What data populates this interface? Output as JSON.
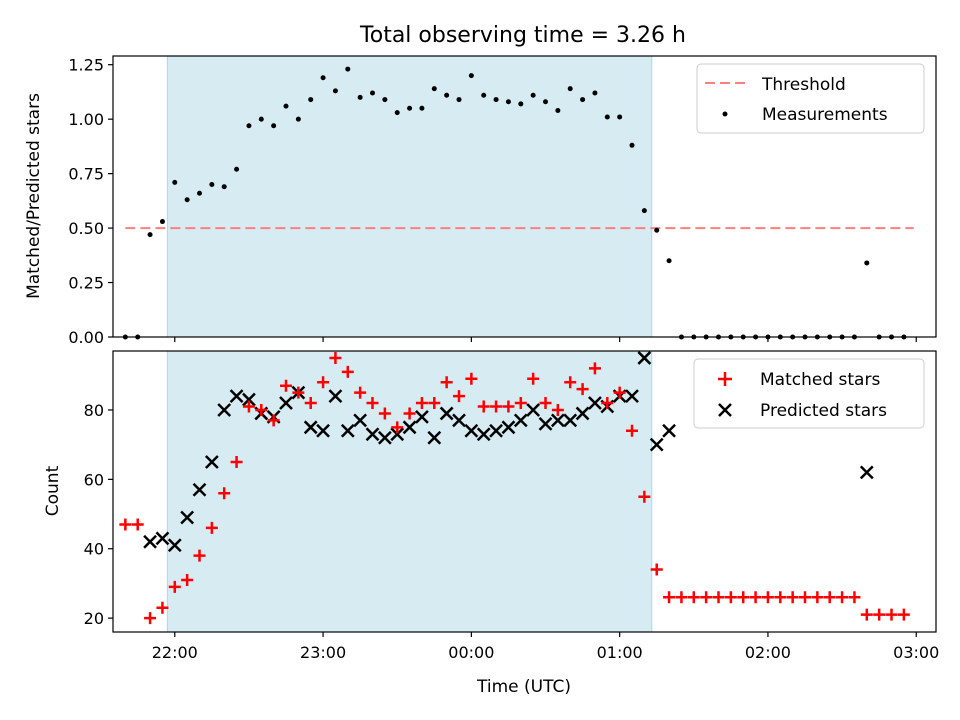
{
  "title": "Total observing time = 3.26 h",
  "chart_data": [
    {
      "type": "scatter",
      "ylabel": "Matched/Predicted stars",
      "xlim": [
        "21:35",
        "03:08"
      ],
      "ylim": [
        0,
        1.29
      ],
      "yticks": [
        "0.00",
        "0.25",
        "0.50",
        "0.75",
        "1.00",
        "1.25"
      ],
      "grid": false,
      "legend": "top-right",
      "observing_window": [
        "21:57",
        "01:13"
      ],
      "threshold": {
        "name": "Threshold",
        "value": 0.5,
        "x": [
          "21:40",
          "02:59"
        ],
        "color": "#ff7f7f"
      },
      "series": [
        {
          "name": "Measurements",
          "color": "#000000",
          "x": [
            "21:40",
            "21:45",
            "21:50",
            "21:55",
            "22:00",
            "22:05",
            "22:10",
            "22:15",
            "22:20",
            "22:25",
            "22:30",
            "22:35",
            "22:40",
            "22:45",
            "22:50",
            "22:55",
            "23:00",
            "23:05",
            "23:10",
            "23:15",
            "23:20",
            "23:25",
            "23:30",
            "23:35",
            "23:40",
            "23:45",
            "23:50",
            "23:55",
            "00:00",
            "00:05",
            "00:10",
            "00:15",
            "00:20",
            "00:25",
            "00:30",
            "00:35",
            "00:40",
            "00:45",
            "00:50",
            "00:55",
            "01:00",
            "01:05",
            "01:10",
            "01:15",
            "01:20",
            "01:25",
            "01:30",
            "01:35",
            "01:40",
            "01:45",
            "01:50",
            "01:55",
            "02:00",
            "02:05",
            "02:10",
            "02:15",
            "02:20",
            "02:25",
            "02:30",
            "02:35",
            "02:40",
            "02:45",
            "02:50",
            "02:55"
          ],
          "y": [
            0.0,
            0.0,
            0.47,
            0.53,
            0.71,
            0.63,
            0.66,
            0.7,
            0.69,
            0.77,
            0.97,
            1.0,
            0.97,
            1.06,
            1.0,
            1.09,
            1.19,
            1.13,
            1.23,
            1.1,
            1.12,
            1.09,
            1.03,
            1.05,
            1.05,
            1.14,
            1.11,
            1.09,
            1.2,
            1.11,
            1.09,
            1.08,
            1.07,
            1.11,
            1.08,
            1.04,
            1.14,
            1.09,
            1.12,
            1.01,
            1.01,
            0.88,
            0.58,
            0.49,
            0.35,
            0.0,
            0.0,
            0.0,
            0.0,
            0.0,
            0.0,
            0.0,
            0.0,
            0.0,
            0.0,
            0.0,
            0.0,
            0.0,
            0.0,
            0.0,
            0.34,
            0.0,
            0.0,
            0.0
          ]
        }
      ]
    },
    {
      "type": "scatter",
      "ylabel": "Count",
      "xlabel": "Time (UTC)",
      "xlim": [
        "21:35",
        "03:08"
      ],
      "ylim": [
        16,
        97
      ],
      "yticks": [
        "20",
        "40",
        "60",
        "80"
      ],
      "xticks": [
        "22:00",
        "23:00",
        "00:00",
        "01:00",
        "02:00",
        "03:00"
      ],
      "grid": false,
      "legend": "top-right",
      "observing_window": [
        "21:57",
        "01:13"
      ],
      "series": [
        {
          "name": "Matched stars",
          "marker": "+",
          "color": "#ff0000",
          "x": [
            "21:40",
            "21:45",
            "21:50",
            "21:55",
            "22:00",
            "22:05",
            "22:10",
            "22:15",
            "22:20",
            "22:25",
            "22:30",
            "22:35",
            "22:40",
            "22:45",
            "22:50",
            "22:55",
            "23:00",
            "23:05",
            "23:10",
            "23:15",
            "23:20",
            "23:25",
            "23:30",
            "23:35",
            "23:40",
            "23:45",
            "23:50",
            "23:55",
            "00:00",
            "00:05",
            "00:10",
            "00:15",
            "00:20",
            "00:25",
            "00:30",
            "00:35",
            "00:40",
            "00:45",
            "00:50",
            "00:55",
            "01:00",
            "01:05",
            "01:10",
            "01:15",
            "01:20",
            "01:25",
            "01:30",
            "01:35",
            "01:40",
            "01:45",
            "01:50",
            "01:55",
            "02:00",
            "02:05",
            "02:10",
            "02:15",
            "02:20",
            "02:25",
            "02:30",
            "02:35",
            "02:40",
            "02:45",
            "02:50",
            "02:55"
          ],
          "y": [
            47,
            47,
            20,
            23,
            29,
            31,
            38,
            46,
            56,
            65,
            81,
            80,
            77,
            87,
            85,
            82,
            88,
            95,
            91,
            85,
            82,
            79,
            75,
            79,
            82,
            82,
            88,
            84,
            89,
            81,
            81,
            81,
            82,
            89,
            82,
            80,
            88,
            86,
            92,
            82,
            85,
            74,
            55,
            34,
            26,
            26,
            26,
            26,
            26,
            26,
            26,
            26,
            26,
            26,
            26,
            26,
            26,
            26,
            26,
            26,
            21,
            21,
            21,
            21
          ]
        },
        {
          "name": "Predicted stars",
          "marker": "x",
          "color": "#000000",
          "x": [
            "21:50",
            "21:55",
            "22:00",
            "22:05",
            "22:10",
            "22:15",
            "22:20",
            "22:25",
            "22:30",
            "22:35",
            "22:40",
            "22:45",
            "22:50",
            "22:55",
            "23:00",
            "23:05",
            "23:10",
            "23:15",
            "23:20",
            "23:25",
            "23:30",
            "23:35",
            "23:40",
            "23:45",
            "23:50",
            "23:55",
            "00:00",
            "00:05",
            "00:10",
            "00:15",
            "00:20",
            "00:25",
            "00:30",
            "00:35",
            "00:40",
            "00:45",
            "00:50",
            "00:55",
            "01:00",
            "01:05",
            "01:10",
            "01:15",
            "01:20",
            "02:40"
          ],
          "y": [
            42,
            43,
            41,
            49,
            57,
            65,
            80,
            84,
            83,
            79,
            78,
            82,
            85,
            75,
            74,
            84,
            74,
            77,
            73,
            72,
            73,
            75,
            78,
            72,
            79,
            77,
            74,
            73,
            74,
            75,
            77,
            80,
            76,
            77,
            77,
            79,
            82,
            81,
            84,
            84,
            95,
            70,
            74,
            62
          ]
        }
      ]
    }
  ]
}
